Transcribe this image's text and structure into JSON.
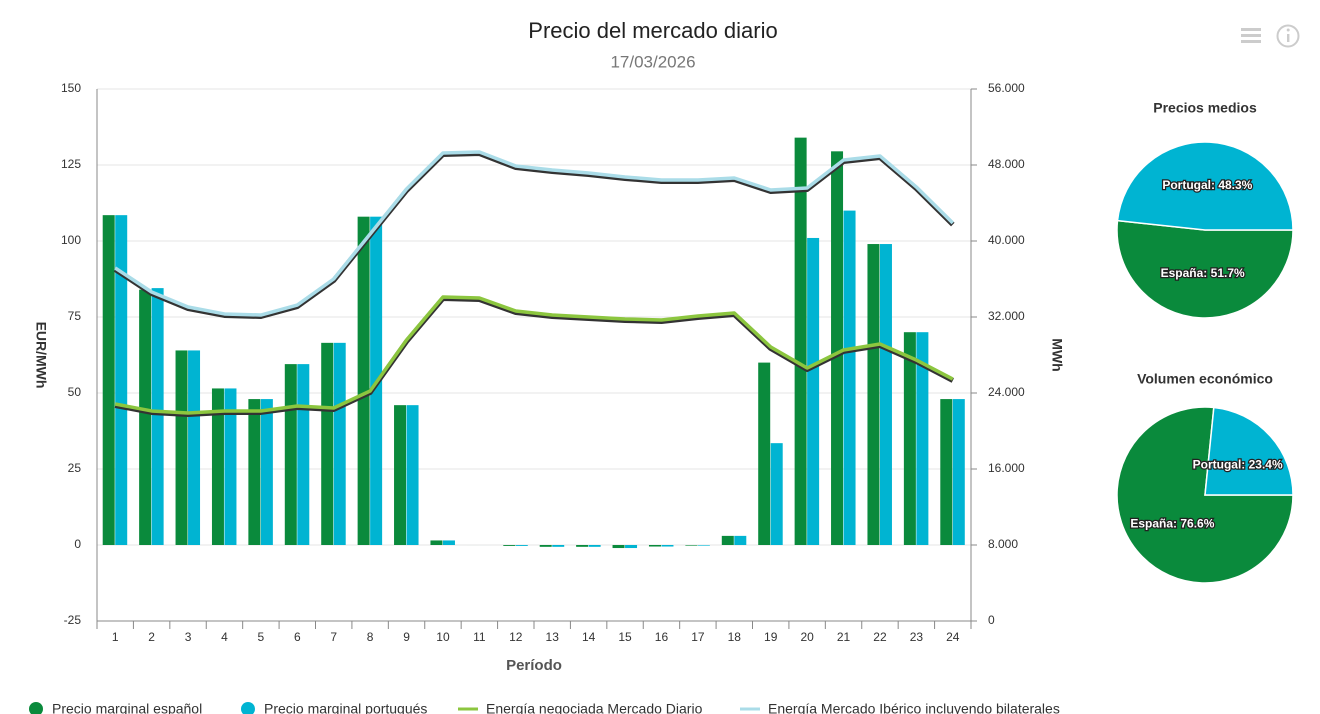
{
  "chart_data": [
    {
      "type": "bar",
      "title": "Precio del mercado diario",
      "subtitle": "17/03/2026",
      "xlabel": "Período",
      "ylabel": "EUR/MWh",
      "y2label": "MWh",
      "categories": [
        "1",
        "2",
        "3",
        "4",
        "5",
        "6",
        "7",
        "8",
        "9",
        "10",
        "11",
        "12",
        "13",
        "14",
        "15",
        "16",
        "17",
        "18",
        "19",
        "20",
        "21",
        "22",
        "23",
        "24"
      ],
      "series": [
        {
          "name": "Precio marginal español",
          "type": "bar",
          "color": "#0a8a3c",
          "values": [
            108.5,
            84,
            64,
            51.5,
            48,
            59.5,
            66.5,
            108,
            46,
            1.5,
            0,
            -0.3,
            -0.6,
            -0.6,
            -1,
            -0.5,
            -0.2,
            3,
            60,
            134,
            129.5,
            99,
            70,
            48
          ]
        },
        {
          "name": "Precio marginal portugués",
          "type": "bar",
          "color": "#00b4d2",
          "values": [
            108.5,
            84.5,
            64,
            51.5,
            48,
            59.5,
            66.5,
            108,
            46,
            1.5,
            0,
            -0.3,
            -0.6,
            -0.6,
            -1,
            -0.5,
            -0.2,
            3,
            33.5,
            101,
            110,
            99,
            70,
            48
          ]
        },
        {
          "name": "Energía negociada Mercado Diario",
          "type": "line",
          "axis": "y2",
          "color": "#8cc63f",
          "values": [
            22840,
            22110,
            21890,
            22110,
            22110,
            22630,
            22420,
            24210,
            29580,
            34110,
            34000,
            32630,
            32210,
            32000,
            31790,
            31680,
            32110,
            32420,
            28840,
            26630,
            28530,
            29160,
            27470,
            25470
          ]
        },
        {
          "name": "Energía Mercado Ibérico incluyendo bilaterales",
          "type": "line",
          "axis": "y2",
          "color": "#aadce8",
          "values": [
            37160,
            34630,
            33050,
            32320,
            32210,
            33260,
            36000,
            40740,
            45470,
            49260,
            49370,
            47890,
            47470,
            47160,
            46740,
            46420,
            46420,
            46630,
            45370,
            45580,
            48530,
            48950,
            45680,
            41890
          ]
        }
      ],
      "ylim": [
        -25,
        150
      ],
      "yticks": [
        -25,
        0,
        25,
        50,
        75,
        100,
        125,
        150
      ],
      "y2lim": [
        0,
        56000
      ],
      "y2ticks": [
        0,
        {
          "value": 8000,
          "label": "8.000"
        },
        {
          "value": 16000,
          "label": "16.000"
        },
        {
          "value": 24000,
          "label": "24.000"
        },
        {
          "value": 32000,
          "label": "32.000"
        },
        {
          "value": 40000,
          "label": "40.000"
        },
        {
          "value": 48000,
          "label": "48.000"
        },
        {
          "value": 56000,
          "label": "56.000"
        }
      ],
      "grid": true,
      "legend": "bottom"
    },
    {
      "type": "pie",
      "title": "Precios medios",
      "categories": [
        "España",
        "Portugal"
      ],
      "colors": [
        "#0a8a3c",
        "#00b4d2"
      ],
      "values": [
        51.7,
        48.3
      ],
      "value_labels": [
        "España: 51.7%",
        "Portugal: 48.3%"
      ]
    },
    {
      "type": "pie",
      "title": "Volumen económico",
      "categories": [
        "España",
        "Portugal"
      ],
      "colors": [
        "#0a8a3c",
        "#00b4d2"
      ],
      "values": [
        76.6,
        23.4
      ],
      "value_labels": [
        "España: 76.6%",
        "Portugal: 23.4%"
      ]
    }
  ]
}
